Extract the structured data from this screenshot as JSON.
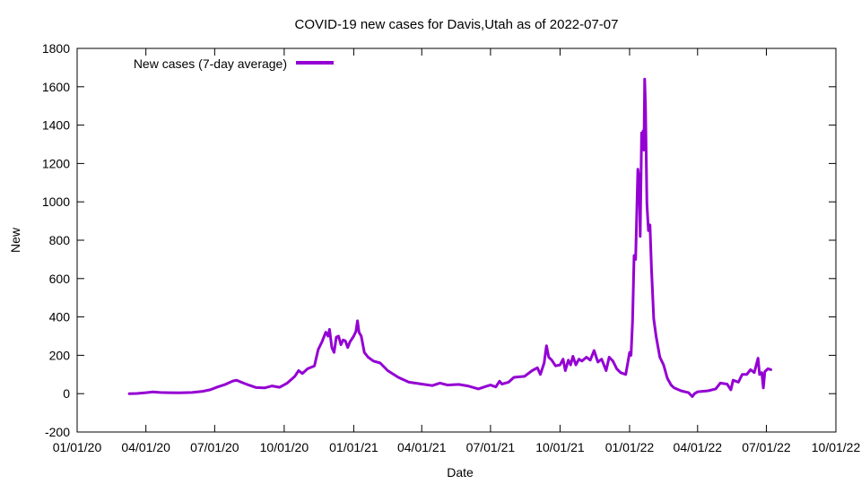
{
  "chart_data": {
    "type": "line",
    "title": "COVID-19 new cases for Davis,Utah as of 2022-07-07",
    "xlabel": "Date",
    "ylabel": "New",
    "xlim": [
      "2020-01-01",
      "2022-10-01"
    ],
    "ylim": [
      -200,
      1800
    ],
    "x_ticks": [
      {
        "date": "2020-01-01",
        "label": "01/01/20"
      },
      {
        "date": "2020-04-01",
        "label": "04/01/20"
      },
      {
        "date": "2020-07-01",
        "label": "07/01/20"
      },
      {
        "date": "2020-10-01",
        "label": "10/01/20"
      },
      {
        "date": "2021-01-01",
        "label": "01/01/21"
      },
      {
        "date": "2021-04-01",
        "label": "04/01/21"
      },
      {
        "date": "2021-07-01",
        "label": "07/01/21"
      },
      {
        "date": "2021-10-01",
        "label": "10/01/21"
      },
      {
        "date": "2022-01-01",
        "label": "01/01/22"
      },
      {
        "date": "2022-04-01",
        "label": "04/01/22"
      },
      {
        "date": "2022-07-01",
        "label": "07/01/22"
      },
      {
        "date": "2022-10-01",
        "label": "10/01/22"
      }
    ],
    "y_ticks": [
      -200,
      0,
      200,
      400,
      600,
      800,
      1000,
      1200,
      1400,
      1600,
      1800
    ],
    "grid": false,
    "legend_position": "top-left",
    "series": [
      {
        "name": "New cases (7-day average)",
        "color": "#9400d3",
        "points": [
          [
            "2020-03-10",
            0
          ],
          [
            "2020-03-20",
            1
          ],
          [
            "2020-04-01",
            5
          ],
          [
            "2020-04-10",
            9
          ],
          [
            "2020-04-20",
            6
          ],
          [
            "2020-05-01",
            5
          ],
          [
            "2020-05-15",
            4
          ],
          [
            "2020-06-01",
            6
          ],
          [
            "2020-06-15",
            12
          ],
          [
            "2020-06-25",
            20
          ],
          [
            "2020-07-05",
            35
          ],
          [
            "2020-07-15",
            48
          ],
          [
            "2020-07-25",
            66
          ],
          [
            "2020-07-30",
            70
          ],
          [
            "2020-08-05",
            60
          ],
          [
            "2020-08-15",
            45
          ],
          [
            "2020-08-25",
            32
          ],
          [
            "2020-09-05",
            30
          ],
          [
            "2020-09-15",
            40
          ],
          [
            "2020-09-25",
            33
          ],
          [
            "2020-10-05",
            55
          ],
          [
            "2020-10-15",
            90
          ],
          [
            "2020-10-20",
            120
          ],
          [
            "2020-10-25",
            105
          ],
          [
            "2020-11-01",
            130
          ],
          [
            "2020-11-10",
            145
          ],
          [
            "2020-11-15",
            230
          ],
          [
            "2020-11-20",
            270
          ],
          [
            "2020-11-25",
            320
          ],
          [
            "2020-11-28",
            300
          ],
          [
            "2020-11-30",
            335
          ],
          [
            "2020-12-03",
            240
          ],
          [
            "2020-12-06",
            215
          ],
          [
            "2020-12-09",
            295
          ],
          [
            "2020-12-12",
            300
          ],
          [
            "2020-12-15",
            255
          ],
          [
            "2020-12-18",
            280
          ],
          [
            "2020-12-21",
            275
          ],
          [
            "2020-12-24",
            240
          ],
          [
            "2020-12-27",
            270
          ],
          [
            "2021-01-01",
            300
          ],
          [
            "2021-01-04",
            325
          ],
          [
            "2021-01-06",
            380
          ],
          [
            "2021-01-08",
            320
          ],
          [
            "2021-01-11",
            300
          ],
          [
            "2021-01-15",
            215
          ],
          [
            "2021-01-20",
            190
          ],
          [
            "2021-01-27",
            170
          ],
          [
            "2021-02-05",
            160
          ],
          [
            "2021-02-15",
            120
          ],
          [
            "2021-03-01",
            85
          ],
          [
            "2021-03-15",
            60
          ],
          [
            "2021-04-01",
            50
          ],
          [
            "2021-04-15",
            42
          ],
          [
            "2021-04-25",
            55
          ],
          [
            "2021-05-05",
            45
          ],
          [
            "2021-05-20",
            48
          ],
          [
            "2021-06-01",
            40
          ],
          [
            "2021-06-15",
            25
          ],
          [
            "2021-06-25",
            38
          ],
          [
            "2021-07-01",
            45
          ],
          [
            "2021-07-08",
            35
          ],
          [
            "2021-07-13",
            65
          ],
          [
            "2021-07-16",
            50
          ],
          [
            "2021-07-25",
            60
          ],
          [
            "2021-08-01",
            85
          ],
          [
            "2021-08-15",
            90
          ],
          [
            "2021-08-25",
            120
          ],
          [
            "2021-09-01",
            135
          ],
          [
            "2021-09-05",
            100
          ],
          [
            "2021-09-10",
            160
          ],
          [
            "2021-09-13",
            250
          ],
          [
            "2021-09-16",
            190
          ],
          [
            "2021-09-20",
            175
          ],
          [
            "2021-09-25",
            145
          ],
          [
            "2021-10-01",
            150
          ],
          [
            "2021-10-05",
            180
          ],
          [
            "2021-10-08",
            120
          ],
          [
            "2021-10-12",
            175
          ],
          [
            "2021-10-15",
            150
          ],
          [
            "2021-10-18",
            195
          ],
          [
            "2021-10-22",
            150
          ],
          [
            "2021-10-26",
            180
          ],
          [
            "2021-10-30",
            170
          ],
          [
            "2021-11-05",
            190
          ],
          [
            "2021-11-10",
            175
          ],
          [
            "2021-11-15",
            225
          ],
          [
            "2021-11-20",
            165
          ],
          [
            "2021-11-25",
            180
          ],
          [
            "2021-12-01",
            120
          ],
          [
            "2021-12-05",
            190
          ],
          [
            "2021-12-10",
            170
          ],
          [
            "2021-12-15",
            130
          ],
          [
            "2021-12-20",
            110
          ],
          [
            "2021-12-27",
            100
          ],
          [
            "2022-01-01",
            215
          ],
          [
            "2022-01-03",
            200
          ],
          [
            "2022-01-05",
            380
          ],
          [
            "2022-01-07",
            720
          ],
          [
            "2022-01-09",
            700
          ],
          [
            "2022-01-12",
            1170
          ],
          [
            "2022-01-14",
            1100
          ],
          [
            "2022-01-15",
            820
          ],
          [
            "2022-01-17",
            1360
          ],
          [
            "2022-01-18",
            1300
          ],
          [
            "2022-01-19",
            1370
          ],
          [
            "2022-01-20",
            1270
          ],
          [
            "2022-01-21",
            1640
          ],
          [
            "2022-01-22",
            1500
          ],
          [
            "2022-01-24",
            990
          ],
          [
            "2022-01-26",
            850
          ],
          [
            "2022-01-28",
            880
          ],
          [
            "2022-01-30",
            650
          ],
          [
            "2022-02-02",
            390
          ],
          [
            "2022-02-05",
            300
          ],
          [
            "2022-02-10",
            190
          ],
          [
            "2022-02-15",
            150
          ],
          [
            "2022-02-20",
            80
          ],
          [
            "2022-02-25",
            45
          ],
          [
            "2022-03-01",
            30
          ],
          [
            "2022-03-10",
            15
          ],
          [
            "2022-03-20",
            5
          ],
          [
            "2022-03-25",
            -15
          ],
          [
            "2022-03-28",
            0
          ],
          [
            "2022-04-01",
            10
          ],
          [
            "2022-04-15",
            15
          ],
          [
            "2022-04-25",
            25
          ],
          [
            "2022-05-01",
            55
          ],
          [
            "2022-05-10",
            50
          ],
          [
            "2022-05-15",
            20
          ],
          [
            "2022-05-18",
            70
          ],
          [
            "2022-05-25",
            60
          ],
          [
            "2022-05-30",
            100
          ],
          [
            "2022-06-05",
            100
          ],
          [
            "2022-06-10",
            125
          ],
          [
            "2022-06-15",
            110
          ],
          [
            "2022-06-20",
            185
          ],
          [
            "2022-06-22",
            100
          ],
          [
            "2022-06-25",
            110
          ],
          [
            "2022-06-27",
            30
          ],
          [
            "2022-06-29",
            115
          ],
          [
            "2022-07-03",
            130
          ],
          [
            "2022-07-07",
            125
          ]
        ]
      }
    ]
  }
}
